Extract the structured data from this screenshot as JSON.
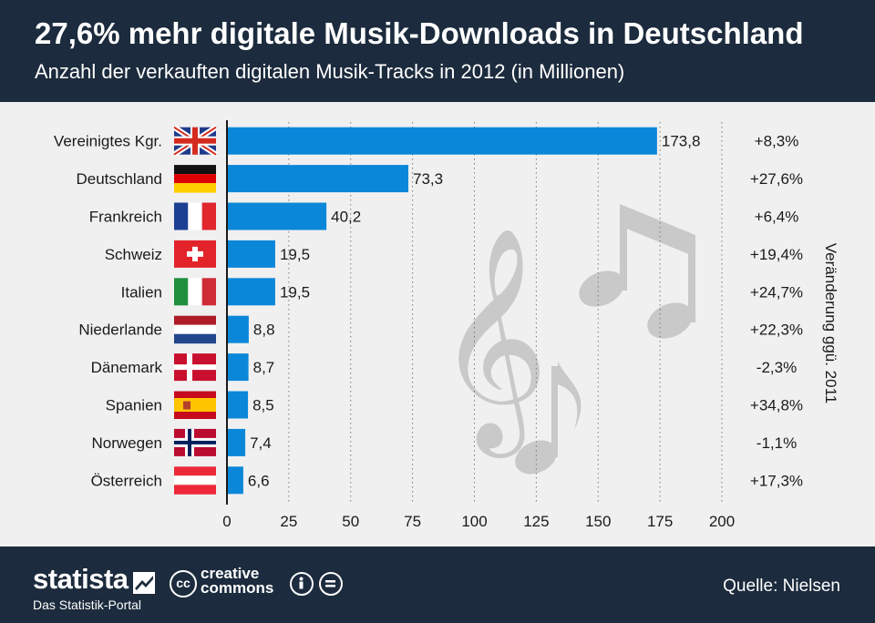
{
  "header": {
    "title": "27,6% mehr digitale Musik-Downloads in Deutschland",
    "subtitle": "Anzahl der verkauften digitalen Musik-Tracks in 2012 (in Millionen)"
  },
  "chart_data": {
    "type": "bar",
    "orientation": "horizontal",
    "categories": [
      "Vereinigtes Kgr.",
      "Deutschland",
      "Frankreich",
      "Schweiz",
      "Italien",
      "Niederlande",
      "Dänemark",
      "Spanien",
      "Norwegen",
      "Österreich"
    ],
    "values": [
      173.8,
      73.3,
      40.2,
      19.5,
      19.5,
      8.8,
      8.7,
      8.5,
      7.4,
      6.6
    ],
    "value_labels": [
      "173,8",
      "73,3",
      "40,2",
      "19,5",
      "19,5",
      "8,8",
      "8,7",
      "8,5",
      "7,4",
      "6,6"
    ],
    "changes": [
      "+8,3%",
      "+27,6%",
      "+6,4%",
      "+19,4%",
      "+24,7%",
      "+22,3%",
      "-2,3%",
      "+34,8%",
      "-1,1%",
      "+17,3%"
    ],
    "change_label": "Veränderung ggü. 2011",
    "flags": [
      "flag-uk-icon",
      "flag-germany-icon",
      "flag-france-icon",
      "flag-switzerland-icon",
      "flag-italy-icon",
      "flag-netherlands-icon",
      "flag-denmark-icon",
      "flag-spain-icon",
      "flag-norway-icon",
      "flag-austria-icon"
    ],
    "xlim": [
      0,
      200
    ],
    "xticks": [
      0,
      25,
      50,
      75,
      100,
      125,
      150,
      175,
      200
    ],
    "grid": "vertical dotted",
    "bar_color": "#0b87d9",
    "decoration": [
      "treble-clef-icon",
      "music-note-icon"
    ]
  },
  "footer": {
    "brand": "statista",
    "brand_sub": "Das Statistik-Portal",
    "cc_label_1": "creative",
    "cc_label_2": "commons",
    "source": "Quelle: Nielsen"
  },
  "colors": {
    "header_bg": "#1c2b3d",
    "chart_bg": "#f0f0f0",
    "bar": "#0b87d9"
  }
}
